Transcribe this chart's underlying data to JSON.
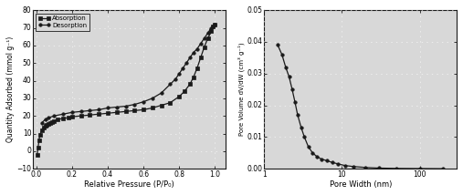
{
  "left": {
    "absorption_x": [
      0.005,
      0.01,
      0.015,
      0.02,
      0.03,
      0.04,
      0.05,
      0.06,
      0.07,
      0.08,
      0.09,
      0.1,
      0.12,
      0.15,
      0.18,
      0.2,
      0.25,
      0.3,
      0.35,
      0.4,
      0.45,
      0.5,
      0.55,
      0.6,
      0.65,
      0.7,
      0.75,
      0.8,
      0.83,
      0.86,
      0.88,
      0.9,
      0.92,
      0.94,
      0.96,
      0.98,
      0.99,
      1.0
    ],
    "absorption_y": [
      -2,
      2,
      6,
      9,
      12,
      13.5,
      14.5,
      15,
      15.5,
      16,
      16.5,
      17,
      18,
      18.5,
      19,
      19.5,
      20,
      20.5,
      21,
      21.5,
      22,
      22.5,
      23,
      23.5,
      24.5,
      26,
      27.5,
      31,
      34,
      38,
      42,
      47,
      53,
      59,
      64,
      68,
      71,
      72
    ],
    "desorption_x": [
      1.0,
      0.99,
      0.98,
      0.96,
      0.94,
      0.92,
      0.9,
      0.88,
      0.86,
      0.84,
      0.82,
      0.8,
      0.78,
      0.75,
      0.7,
      0.65,
      0.6,
      0.55,
      0.5,
      0.45,
      0.4,
      0.35,
      0.3,
      0.25,
      0.2,
      0.15,
      0.1,
      0.07,
      0.05,
      0.03
    ],
    "desorption_y": [
      72,
      71,
      70,
      67,
      64,
      61,
      58,
      56,
      53,
      50,
      47,
      44,
      41,
      38,
      33,
      30,
      28,
      26.5,
      25.5,
      25,
      24.5,
      23.5,
      23,
      22.5,
      22,
      21,
      20,
      19,
      18,
      16
    ],
    "xlabel": "Relative Pressure (P/P₀)",
    "ylabel": "Quantity Adsorbed (mmol g⁻¹)",
    "xlim": [
      -0.02,
      1.06
    ],
    "ylim": [
      -10,
      80
    ],
    "yticks": [
      -10,
      0,
      10,
      20,
      30,
      40,
      50,
      60,
      70,
      80
    ],
    "xticks": [
      0.0,
      0.2,
      0.4,
      0.6,
      0.8,
      1.0
    ],
    "legend_absorption": "Absorption",
    "legend_desorption": "Desorption"
  },
  "right": {
    "pore_width": [
      1.5,
      1.7,
      1.9,
      2.1,
      2.3,
      2.5,
      2.7,
      3.0,
      3.3,
      3.7,
      4.2,
      4.8,
      5.5,
      6.5,
      7.5,
      9.0,
      11.0,
      14.0,
      20.0,
      30.0,
      50.0,
      100.0,
      200.0
    ],
    "dv_dw": [
      0.039,
      0.036,
      0.032,
      0.029,
      0.025,
      0.021,
      0.017,
      0.013,
      0.01,
      0.007,
      0.005,
      0.0038,
      0.003,
      0.0025,
      0.002,
      0.0015,
      0.001,
      0.0007,
      0.0004,
      0.0002,
      0.0001,
      5e-05,
      1e-05
    ],
    "xlabel": "Pore Width (nm)",
    "ylabel": "Pore Volume dV/dW (cm³ g⁻¹)",
    "ylim": [
      0.0,
      0.05
    ],
    "yticks": [
      0.0,
      0.01,
      0.02,
      0.03,
      0.04,
      0.05
    ],
    "xlim_log": [
      1,
      300
    ]
  },
  "bg_color": "#c8c8c8",
  "plot_bg": "#d8d8d8",
  "line_color": "#1a1a1a",
  "dot_color": "#aaaaaa"
}
